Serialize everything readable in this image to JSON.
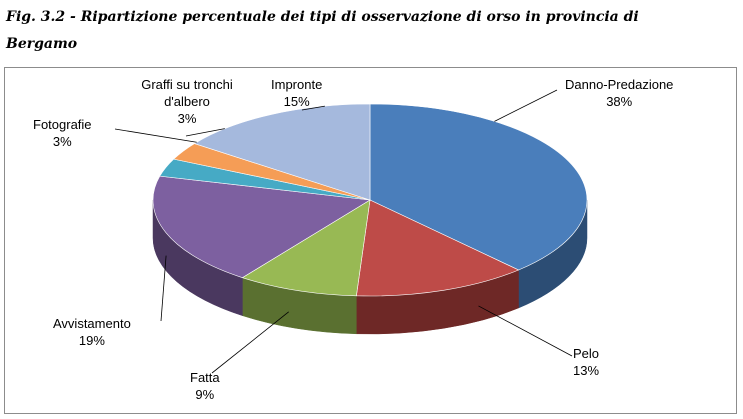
{
  "caption": {
    "line1": "Fig. 3.2 - Ripartizione percentuale dei tipi di osservazione di orso in provincia di",
    "line2": "Bergamo"
  },
  "chart_data": {
    "type": "pie",
    "style": "3d",
    "slices": [
      {
        "label": "Danno-Predazione",
        "value": 38,
        "value_label": "38%",
        "color": "#4a7ebb",
        "side_color": "#2c4d74"
      },
      {
        "label": "Pelo",
        "value": 13,
        "value_label": "13%",
        "color": "#be4b48",
        "side_color": "#6e2826"
      },
      {
        "label": "Fatta",
        "value": 9,
        "value_label": "9%",
        "color": "#98b954",
        "side_color": "#5a7030"
      },
      {
        "label": "Avvistamento",
        "value": 19,
        "value_label": "19%",
        "color": "#7d60a0",
        "side_color": "#4a385f"
      },
      {
        "label": "Fotografie",
        "value": 3,
        "value_label": "3%",
        "color": "#46aac5",
        "side_color": "#286574"
      },
      {
        "label": "Graffi su tronchi d'albero",
        "value": 3,
        "value_label": "3%",
        "color": "#f59d56",
        "side_color": "#935b2e"
      },
      {
        "label": "Impronte",
        "value": 15,
        "value_label": "15%",
        "color": "#a5b9dd",
        "side_color": "#62708b"
      }
    ]
  }
}
